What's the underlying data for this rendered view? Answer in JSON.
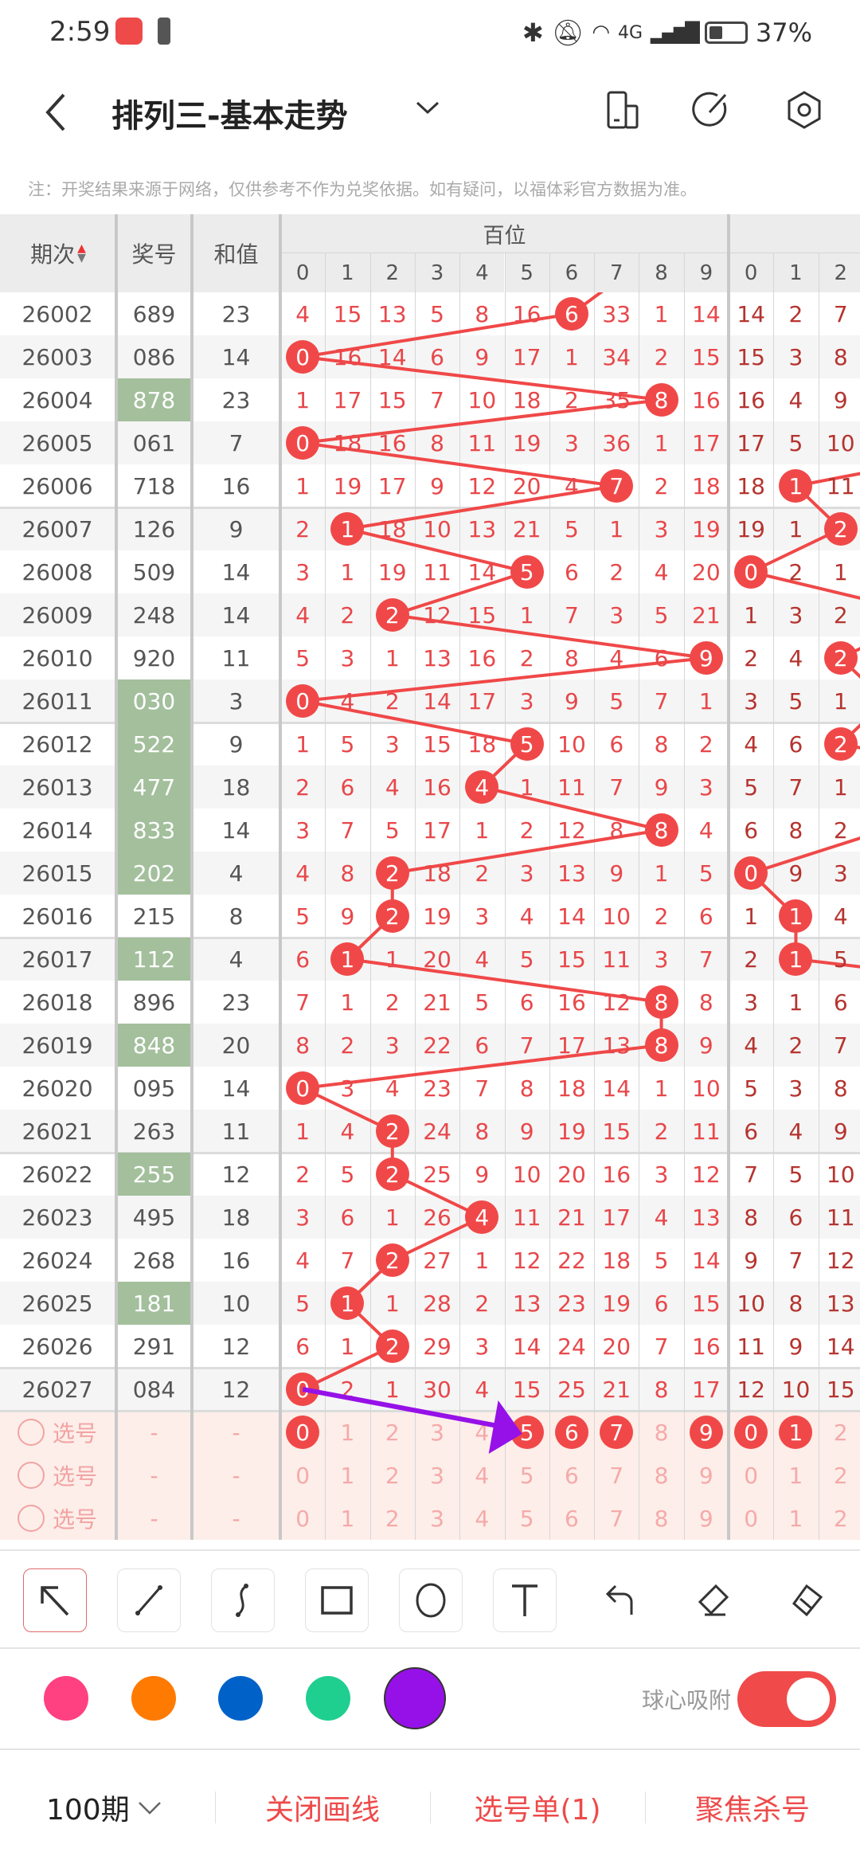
{
  "status_bar": {
    "time": "2:59",
    "battery": "37%",
    "network": "4G"
  },
  "header": {
    "title": "排列三-基本走势",
    "icons": [
      "back-icon",
      "chevron-down-icon",
      "device-icon",
      "share-icon",
      "settings-icon"
    ]
  },
  "note": "注：开奖结果来源于网络，仅供参考不作为兑奖依据。如有疑问，以福体彩官方数据为准。",
  "table": {
    "headers": {
      "period": "期次",
      "number": "奖号",
      "sum": "和值",
      "hundreds": "百位"
    },
    "digit_labels": [
      "0",
      "1",
      "2",
      "3",
      "4",
      "5",
      "6",
      "7",
      "8",
      "9"
    ],
    "tens_labels": [
      "0",
      "1",
      "2"
    ],
    "rows": [
      {
        "period": "26002",
        "number": "689",
        "sum": "23",
        "group": false,
        "h": [
          "4",
          "15",
          "13",
          "5",
          "8",
          "16",
          "6",
          "33",
          "1",
          "14"
        ],
        "t": [
          "14",
          "2",
          "7"
        ]
      },
      {
        "period": "26003",
        "number": "086",
        "sum": "14",
        "group": false,
        "h": [
          "0",
          "16",
          "14",
          "6",
          "9",
          "17",
          "1",
          "34",
          "2",
          "15"
        ],
        "t": [
          "15",
          "3",
          "8"
        ]
      },
      {
        "period": "26004",
        "number": "878",
        "sum": "23",
        "group": true,
        "h": [
          "1",
          "17",
          "15",
          "7",
          "10",
          "18",
          "2",
          "35",
          "8",
          "16"
        ],
        "t": [
          "16",
          "4",
          "9"
        ]
      },
      {
        "period": "26005",
        "number": "061",
        "sum": "7",
        "group": false,
        "h": [
          "0",
          "18",
          "16",
          "8",
          "11",
          "19",
          "3",
          "36",
          "1",
          "17"
        ],
        "t": [
          "17",
          "5",
          "10"
        ]
      },
      {
        "period": "26006",
        "number": "718",
        "sum": "16",
        "group": false,
        "h": [
          "1",
          "19",
          "17",
          "9",
          "12",
          "20",
          "4",
          "7",
          "2",
          "18"
        ],
        "t": [
          "18",
          "1",
          "11"
        ]
      },
      {
        "period": "26007",
        "number": "126",
        "sum": "9",
        "group": false,
        "h": [
          "2",
          "1",
          "18",
          "10",
          "13",
          "21",
          "5",
          "1",
          "3",
          "19"
        ],
        "t": [
          "19",
          "1",
          "2"
        ]
      },
      {
        "period": "26008",
        "number": "509",
        "sum": "14",
        "group": false,
        "h": [
          "3",
          "1",
          "19",
          "11",
          "14",
          "5",
          "6",
          "2",
          "4",
          "20"
        ],
        "t": [
          "0",
          "2",
          "1"
        ]
      },
      {
        "period": "26009",
        "number": "248",
        "sum": "14",
        "group": false,
        "h": [
          "4",
          "2",
          "2",
          "12",
          "15",
          "1",
          "7",
          "3",
          "5",
          "21"
        ],
        "t": [
          "1",
          "3",
          "2"
        ]
      },
      {
        "period": "26010",
        "number": "920",
        "sum": "11",
        "group": false,
        "h": [
          "5",
          "3",
          "1",
          "13",
          "16",
          "2",
          "8",
          "4",
          "6",
          "9"
        ],
        "t": [
          "2",
          "4",
          "2"
        ]
      },
      {
        "period": "26011",
        "number": "030",
        "sum": "3",
        "group": true,
        "h": [
          "0",
          "4",
          "2",
          "14",
          "17",
          "3",
          "9",
          "5",
          "7",
          "1"
        ],
        "t": [
          "3",
          "5",
          "1"
        ]
      },
      {
        "period": "26012",
        "number": "522",
        "sum": "9",
        "group": true,
        "h": [
          "1",
          "5",
          "3",
          "15",
          "18",
          "5",
          "10",
          "6",
          "8",
          "2"
        ],
        "t": [
          "4",
          "6",
          "2"
        ]
      },
      {
        "period": "26013",
        "number": "477",
        "sum": "18",
        "group": true,
        "h": [
          "2",
          "6",
          "4",
          "16",
          "4",
          "1",
          "11",
          "7",
          "9",
          "3"
        ],
        "t": [
          "5",
          "7",
          "1"
        ]
      },
      {
        "period": "26014",
        "number": "833",
        "sum": "14",
        "group": true,
        "h": [
          "3",
          "7",
          "5",
          "17",
          "1",
          "2",
          "12",
          "8",
          "8",
          "4"
        ],
        "t": [
          "6",
          "8",
          "2"
        ]
      },
      {
        "period": "26015",
        "number": "202",
        "sum": "4",
        "group": true,
        "h": [
          "4",
          "8",
          "2",
          "18",
          "2",
          "3",
          "13",
          "9",
          "1",
          "5"
        ],
        "t": [
          "0",
          "9",
          "3"
        ]
      },
      {
        "period": "26016",
        "number": "215",
        "sum": "8",
        "group": false,
        "h": [
          "5",
          "9",
          "2",
          "19",
          "3",
          "4",
          "14",
          "10",
          "2",
          "6"
        ],
        "t": [
          "1",
          "1",
          "4"
        ]
      },
      {
        "period": "26017",
        "number": "112",
        "sum": "4",
        "group": true,
        "h": [
          "6",
          "1",
          "1",
          "20",
          "4",
          "5",
          "15",
          "11",
          "3",
          "7"
        ],
        "t": [
          "2",
          "1",
          "5"
        ]
      },
      {
        "period": "26018",
        "number": "896",
        "sum": "23",
        "group": false,
        "h": [
          "7",
          "1",
          "2",
          "21",
          "5",
          "6",
          "16",
          "12",
          "8",
          "8"
        ],
        "t": [
          "3",
          "1",
          "6"
        ]
      },
      {
        "period": "26019",
        "number": "848",
        "sum": "20",
        "group": true,
        "h": [
          "8",
          "2",
          "3",
          "22",
          "6",
          "7",
          "17",
          "13",
          "8",
          "9"
        ],
        "t": [
          "4",
          "2",
          "7"
        ]
      },
      {
        "period": "26020",
        "number": "095",
        "sum": "14",
        "group": false,
        "h": [
          "0",
          "3",
          "4",
          "23",
          "7",
          "8",
          "18",
          "14",
          "1",
          "10"
        ],
        "t": [
          "5",
          "3",
          "8"
        ]
      },
      {
        "period": "26021",
        "number": "263",
        "sum": "11",
        "group": false,
        "h": [
          "1",
          "4",
          "2",
          "24",
          "8",
          "9",
          "19",
          "15",
          "2",
          "11"
        ],
        "t": [
          "6",
          "4",
          "9"
        ]
      },
      {
        "period": "26022",
        "number": "255",
        "sum": "12",
        "group": true,
        "h": [
          "2",
          "5",
          "2",
          "25",
          "9",
          "10",
          "20",
          "16",
          "3",
          "12"
        ],
        "t": [
          "7",
          "5",
          "10"
        ]
      },
      {
        "period": "26023",
        "number": "495",
        "sum": "18",
        "group": false,
        "h": [
          "3",
          "6",
          "1",
          "26",
          "4",
          "11",
          "21",
          "17",
          "4",
          "13"
        ],
        "t": [
          "8",
          "6",
          "11"
        ]
      },
      {
        "period": "26024",
        "number": "268",
        "sum": "16",
        "group": false,
        "h": [
          "4",
          "7",
          "2",
          "27",
          "1",
          "12",
          "22",
          "18",
          "5",
          "14"
        ],
        "t": [
          "9",
          "7",
          "12"
        ]
      },
      {
        "period": "26025",
        "number": "181",
        "sum": "10",
        "group": true,
        "h": [
          "5",
          "1",
          "1",
          "28",
          "2",
          "13",
          "23",
          "19",
          "6",
          "15"
        ],
        "t": [
          "10",
          "8",
          "13"
        ]
      },
      {
        "period": "26026",
        "number": "291",
        "sum": "12",
        "group": false,
        "h": [
          "6",
          "1",
          "2",
          "29",
          "3",
          "14",
          "24",
          "20",
          "7",
          "16"
        ],
        "t": [
          "11",
          "9",
          "14"
        ]
      },
      {
        "period": "26027",
        "number": "084",
        "sum": "12",
        "group": false,
        "h": [
          "0",
          "2",
          "1",
          "30",
          "4",
          "15",
          "25",
          "21",
          "8",
          "17"
        ],
        "t": [
          "12",
          "10",
          "15"
        ]
      }
    ],
    "pick_rows": [
      {
        "label": "选号",
        "number": "-",
        "sum": "-",
        "h_selected": [
          0,
          5,
          6,
          7,
          9
        ],
        "t_selected": [
          0,
          1
        ]
      },
      {
        "label": "选号",
        "number": "-",
        "sum": "-",
        "h_selected": [],
        "t_selected": []
      },
      {
        "label": "选号",
        "number": "-",
        "sum": "-",
        "h_selected": [],
        "t_selected": []
      }
    ]
  },
  "drawing_tools": [
    {
      "name": "arrow",
      "icon": "arrow-icon",
      "selected": true
    },
    {
      "name": "line",
      "icon": "line-icon",
      "selected": false
    },
    {
      "name": "curve",
      "icon": "curve-icon",
      "selected": false
    },
    {
      "name": "rectangle",
      "icon": "rectangle-icon",
      "selected": false
    },
    {
      "name": "circle",
      "icon": "circle-icon",
      "selected": false
    },
    {
      "name": "text",
      "icon": "text-icon",
      "selected": false
    },
    {
      "name": "undo",
      "icon": "undo-icon",
      "selected": false
    },
    {
      "name": "eraser",
      "icon": "eraser-icon",
      "selected": false
    },
    {
      "name": "clear",
      "icon": "brush-clear-icon",
      "selected": false
    }
  ],
  "colors": {
    "palette": [
      "#ff4081",
      "#ff7a00",
      "#0062c8",
      "#1fcf8f",
      "#9611e8"
    ],
    "selected": "#9611e8",
    "ball": "#f04848",
    "digit": "#e8474a",
    "tens_digit": "#b5342f",
    "group_bg": "#a3bf9c"
  },
  "snap": {
    "label": "球心吸附",
    "on": true
  },
  "bottom_bar": {
    "periods": "100期",
    "close_draw": "关闭画线",
    "pick_list": "选号单(1)",
    "focus_kill": "聚焦杀号"
  }
}
